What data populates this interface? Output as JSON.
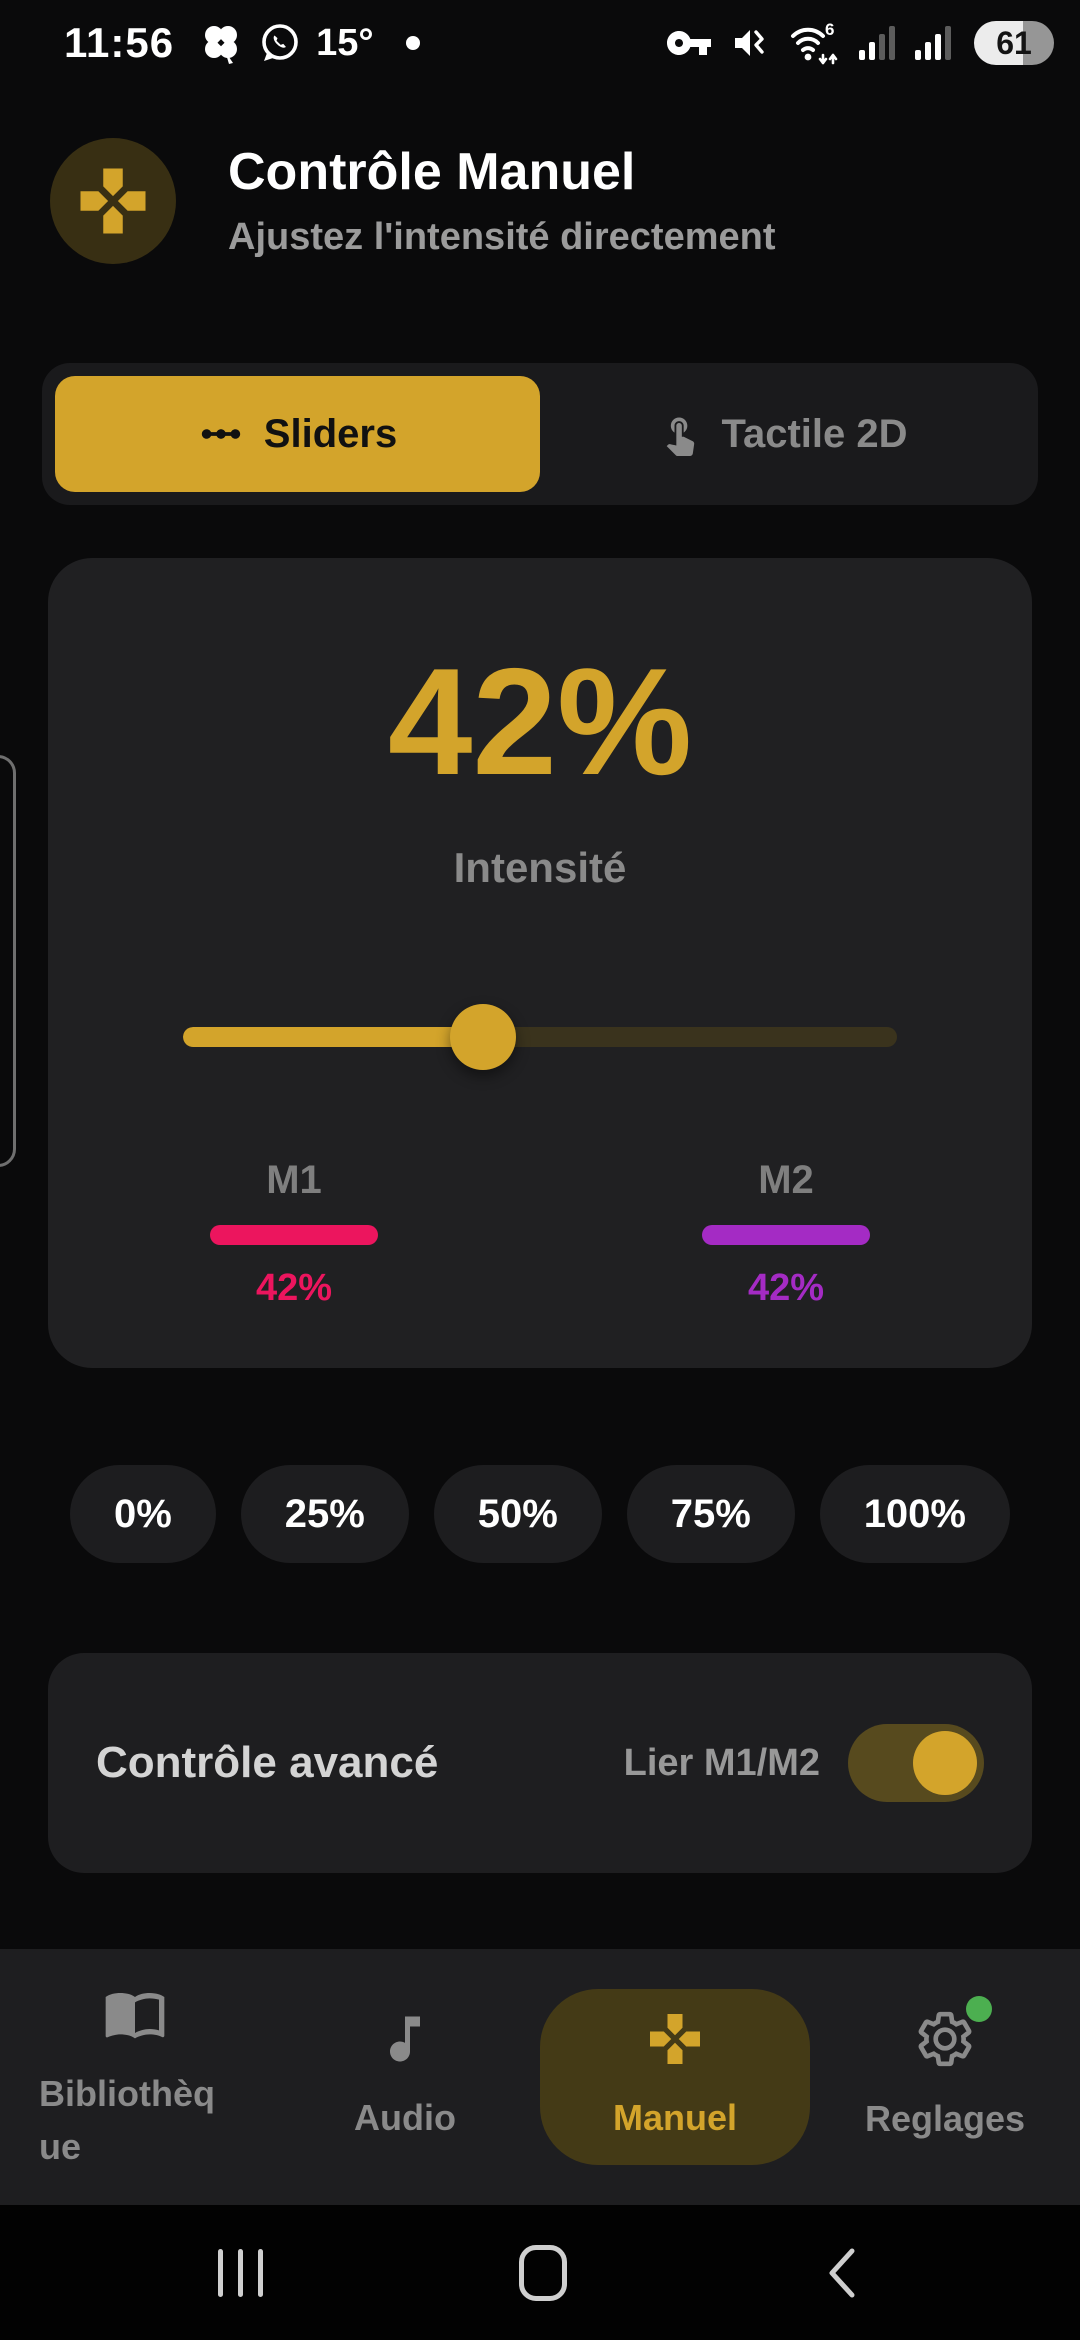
{
  "status_bar": {
    "time": "11:56",
    "temperature": "15°",
    "battery_level": "61",
    "left_icons": [
      "clover-app-icon",
      "whatsapp-icon",
      "notification-dot"
    ],
    "right_icons": [
      "vpn-key-icon",
      "mute-vibrate-icon",
      "wifi6-updown-icon",
      "cellular-signal-1-icon",
      "cellular-signal-2-icon",
      "battery-61"
    ]
  },
  "header": {
    "title": "Contrôle Manuel",
    "subtitle": "Ajustez l'intensité directement",
    "icon": "gamepad-icon"
  },
  "tabs": [
    {
      "label": "Sliders",
      "icon": "sliders-linear-scale-icon",
      "active": true
    },
    {
      "label": "Tactile 2D",
      "icon": "touch-app-icon",
      "active": false
    }
  ],
  "intensity": {
    "value_label": "42%",
    "percent": 42,
    "label": "Intensité",
    "motors": [
      {
        "name": "M1",
        "value_label": "42%",
        "percent": 42,
        "color": "#ec155e"
      },
      {
        "name": "M2",
        "value_label": "42%",
        "percent": 42,
        "color": "#a42bc4"
      }
    ]
  },
  "presets": [
    "0%",
    "25%",
    "50%",
    "75%",
    "100%"
  ],
  "advanced": {
    "title": "Contrôle avancé",
    "toggle_label": "Lier M1/M2",
    "toggle_on": true
  },
  "bottom_nav": [
    {
      "label": "Bibliothèque",
      "icon": "book-icon",
      "active": false
    },
    {
      "label": "Audio",
      "icon": "music-note-icon",
      "active": false
    },
    {
      "label": "Manuel",
      "icon": "gamepad-icon",
      "active": true
    },
    {
      "label": "Reglages",
      "icon": "gear-icon",
      "active": false,
      "badge": true
    }
  ],
  "android_nav": [
    "recents",
    "home",
    "back"
  ],
  "colors": {
    "accent_yellow": "#d3a42b",
    "track_dim": "#3a331d",
    "m1_pink": "#ec155e",
    "m2_purple": "#a42bc4",
    "badge_green": "#4caf50",
    "card_bg": "#202022",
    "nav_bg": "#1e1e20"
  }
}
